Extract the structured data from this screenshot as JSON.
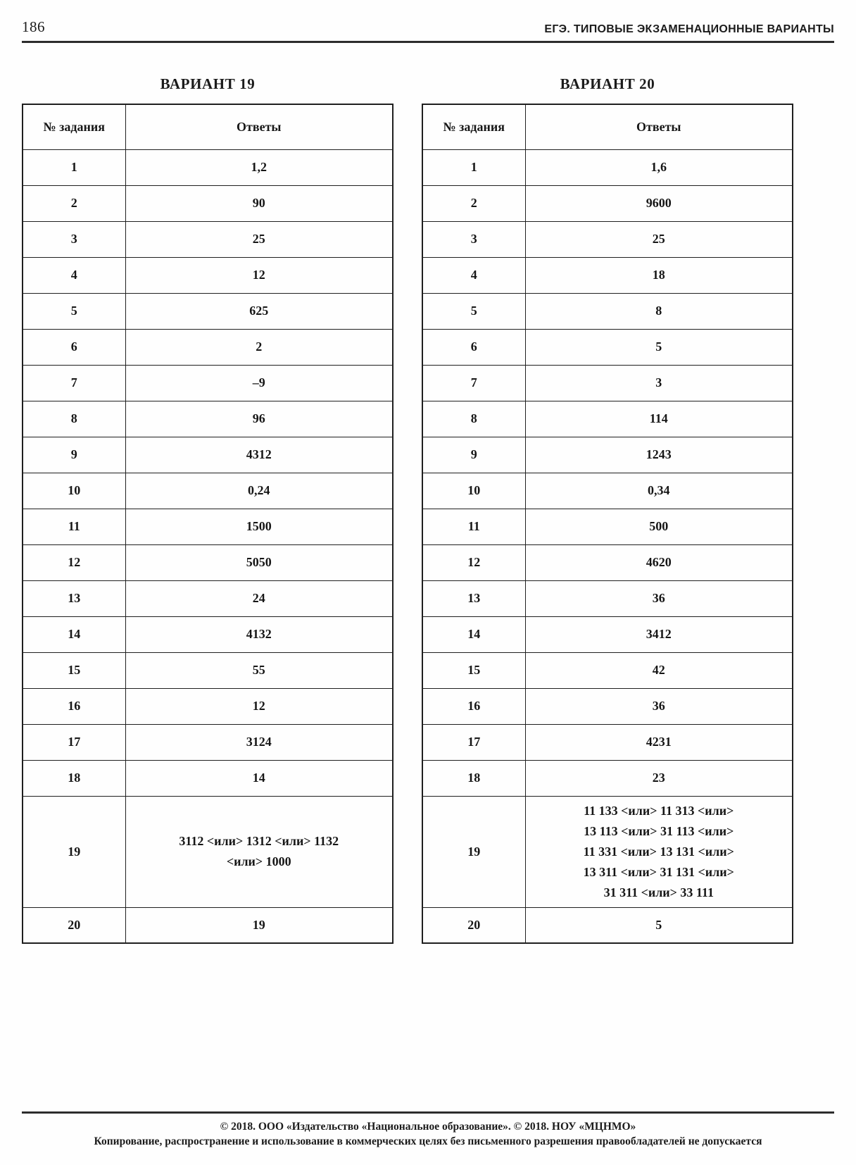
{
  "page": {
    "number": "186",
    "running_head": "ЕГЭ. ТИПОВЫЕ ЭКЗАМЕНАЦИОННЫЕ ВАРИАНТЫ"
  },
  "tables": [
    {
      "title": "ВАРИАНТ 19",
      "col_headers": [
        "№ задания",
        "Ответы"
      ],
      "rows": [
        [
          "1",
          "1,2"
        ],
        [
          "2",
          "90"
        ],
        [
          "3",
          "25"
        ],
        [
          "4",
          "12"
        ],
        [
          "5",
          "625"
        ],
        [
          "6",
          "2"
        ],
        [
          "7",
          "–9"
        ],
        [
          "8",
          "96"
        ],
        [
          "9",
          "4312"
        ],
        [
          "10",
          "0,24"
        ],
        [
          "11",
          "1500"
        ],
        [
          "12",
          "5050"
        ],
        [
          "13",
          "24"
        ],
        [
          "14",
          "4132"
        ],
        [
          "15",
          "55"
        ],
        [
          "16",
          "12"
        ],
        [
          "17",
          "3124"
        ],
        [
          "18",
          "14"
        ],
        [
          "19",
          "3112 <или> 1312 <или> 1132\n<или> 1000"
        ],
        [
          "20",
          "19"
        ]
      ]
    },
    {
      "title": "ВАРИАНТ 20",
      "col_headers": [
        "№ задания",
        "Ответы"
      ],
      "rows": [
        [
          "1",
          "1,6"
        ],
        [
          "2",
          "9600"
        ],
        [
          "3",
          "25"
        ],
        [
          "4",
          "18"
        ],
        [
          "5",
          "8"
        ],
        [
          "6",
          "5"
        ],
        [
          "7",
          "3"
        ],
        [
          "8",
          "114"
        ],
        [
          "9",
          "1243"
        ],
        [
          "10",
          "0,34"
        ],
        [
          "11",
          "500"
        ],
        [
          "12",
          "4620"
        ],
        [
          "13",
          "36"
        ],
        [
          "14",
          "3412"
        ],
        [
          "15",
          "42"
        ],
        [
          "16",
          "36"
        ],
        [
          "17",
          "4231"
        ],
        [
          "18",
          "23"
        ],
        [
          "19",
          "11 133 <или> 11 313 <или>\n13 113 <или> 31 113 <или>\n11 331 <или> 13 131 <или>\n13 311 <или> 31 131 <или>\n31 311 <или> 33 111"
        ],
        [
          "20",
          "5"
        ]
      ]
    }
  ],
  "footer": {
    "line1": "© 2018. ООО «Издательство «Национальное образование». © 2018. НОУ «МЦНМО»",
    "line2": "Копирование, распространение и использование в коммерческих целях без письменного разрешения правообладателей не допускается"
  }
}
